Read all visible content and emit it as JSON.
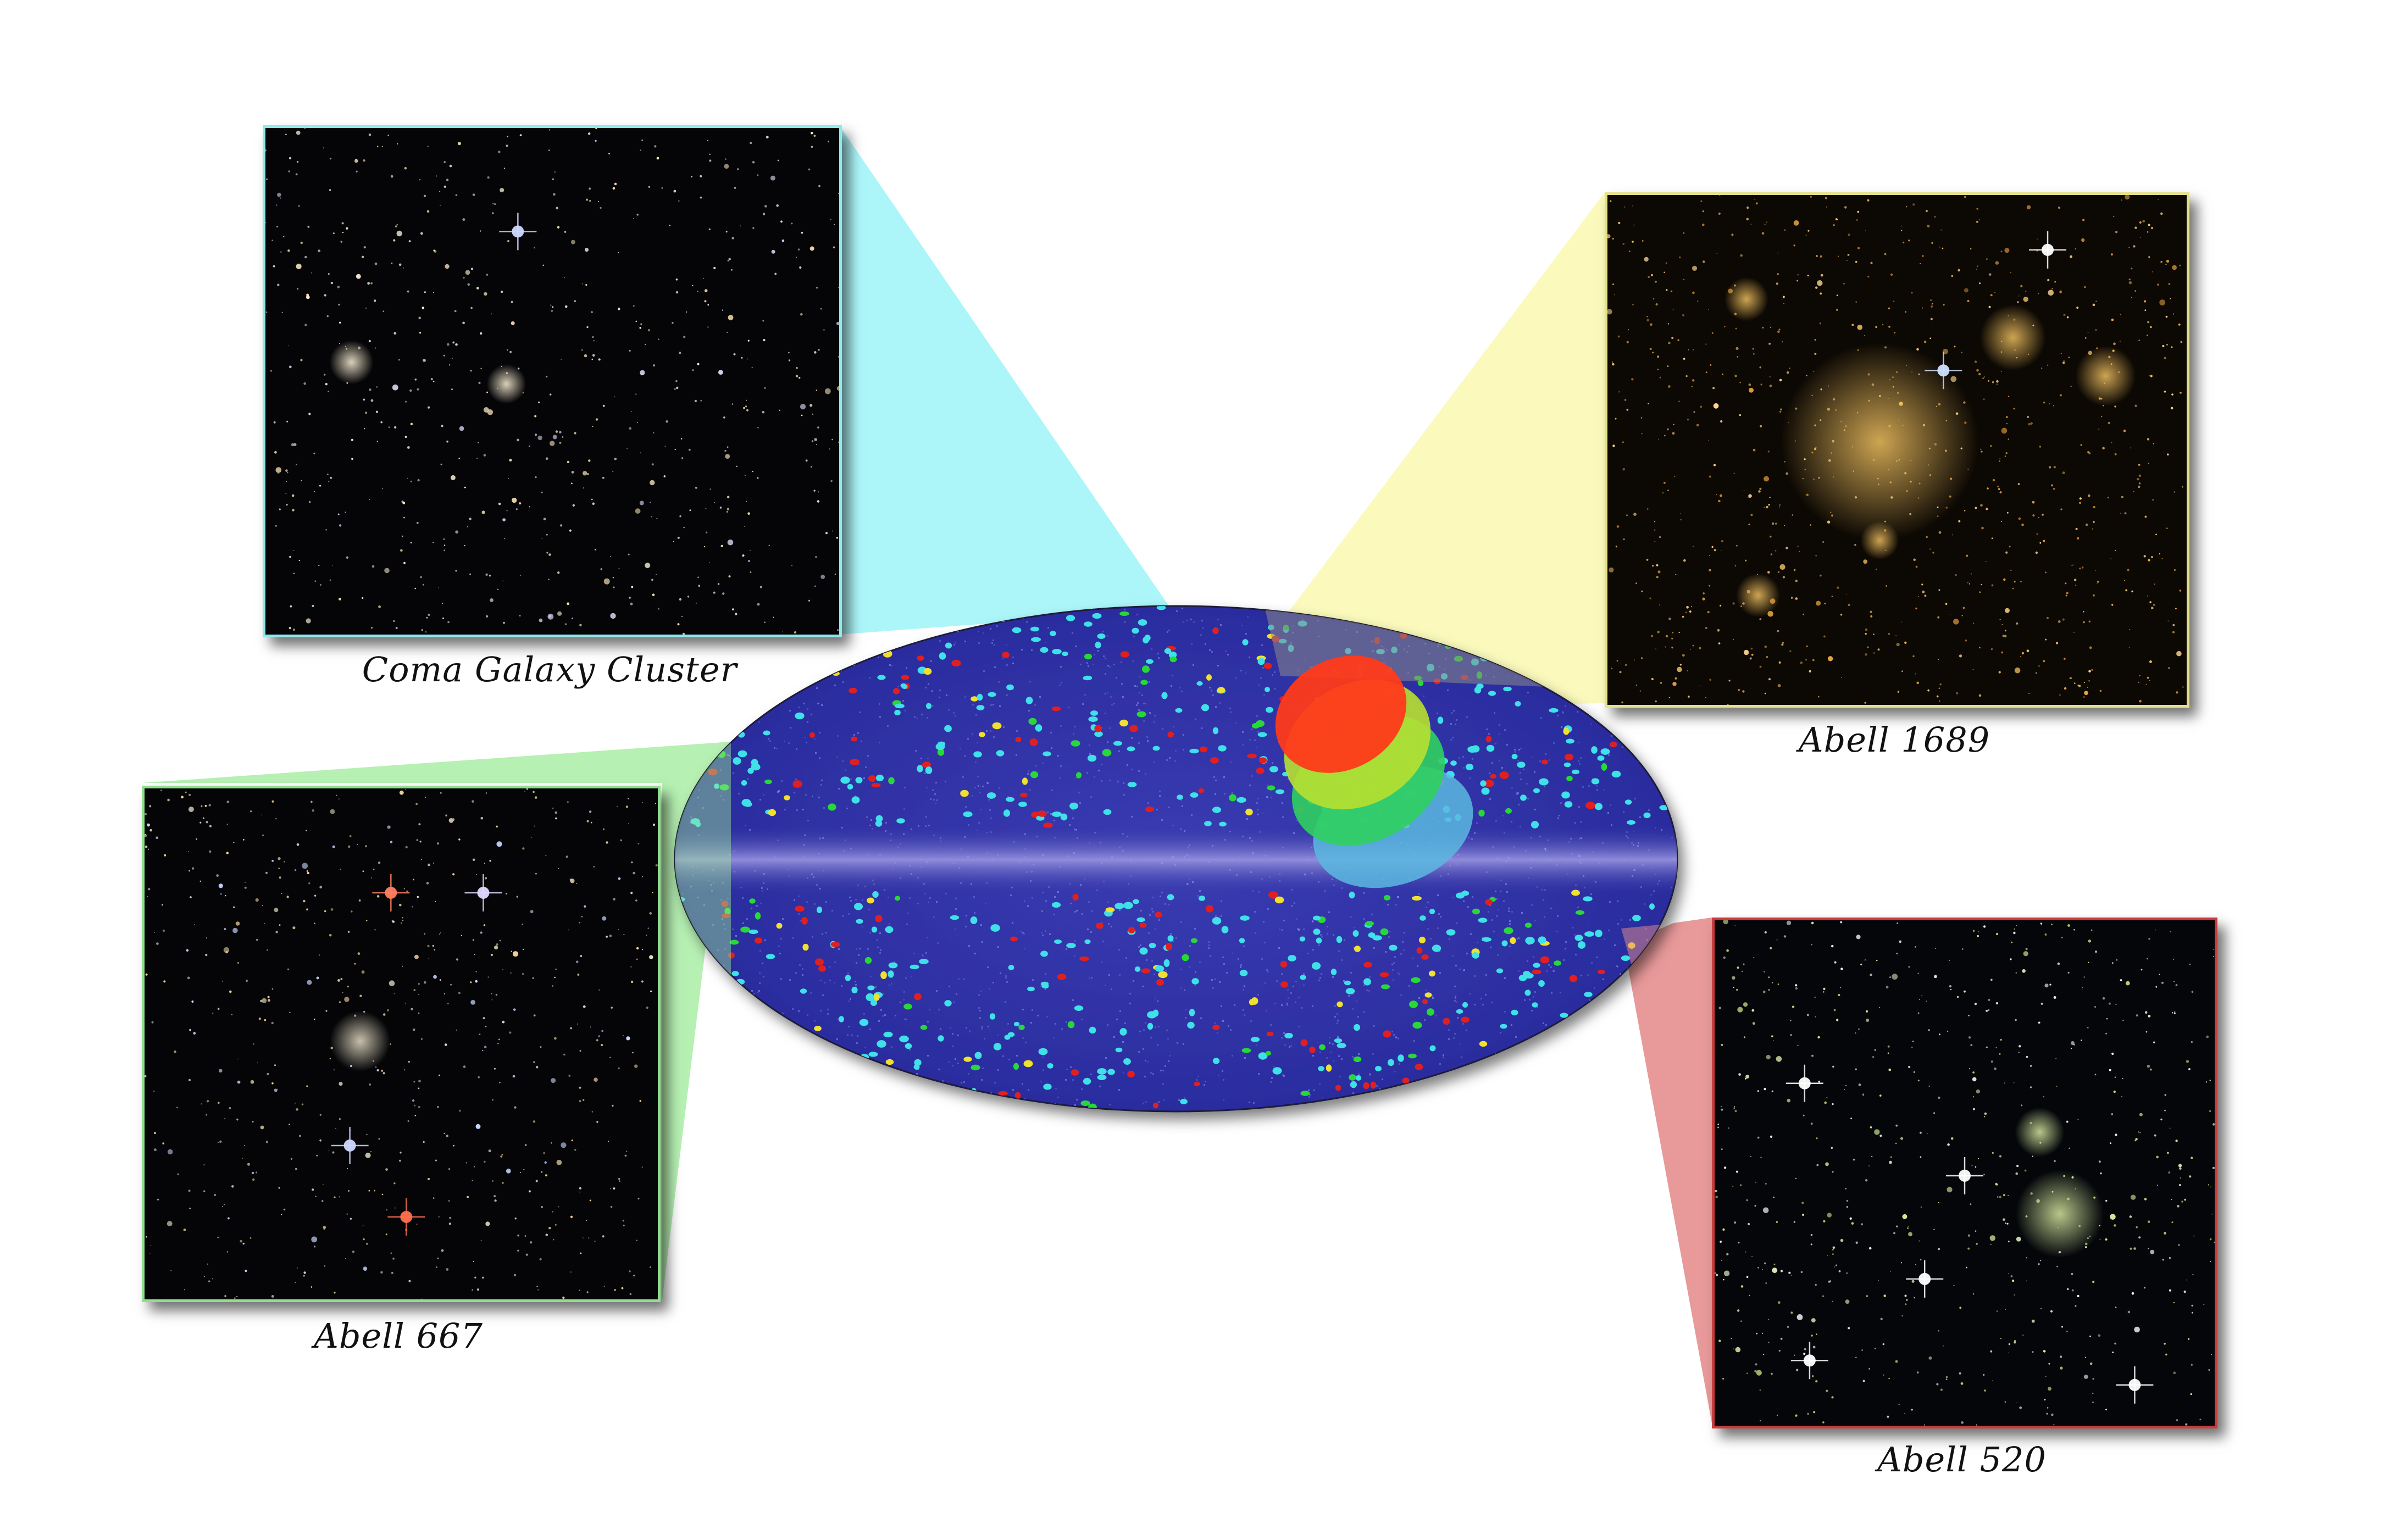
{
  "panels": {
    "coma": {
      "caption": "Coma Galaxy Cluster",
      "frame_color": "#8fe8ea",
      "wedge_color": "#a8f6fa"
    },
    "abell1689": {
      "caption": "Abell 1689",
      "frame_color": "#e6e08a",
      "wedge_color": "#fbfab8"
    },
    "abell667": {
      "caption": "Abell 667",
      "frame_color": "#8ee08e",
      "wedge_color": "#aeeeaa"
    },
    "abell520": {
      "caption": "Abell 520",
      "frame_color": "#c83c3c",
      "wedge_color": "#e58e8e"
    }
  },
  "sky_map": {
    "background_color": "#2c2fa0",
    "galactic_plane_color": "#8a86d6",
    "cluster_colors": [
      "#3fe0e8",
      "#e02020",
      "#28d838",
      "#f0e030"
    ],
    "flow_region_colors": [
      "#ff3a1a",
      "#b8e030",
      "#30d060",
      "#5ab8e0"
    ]
  }
}
